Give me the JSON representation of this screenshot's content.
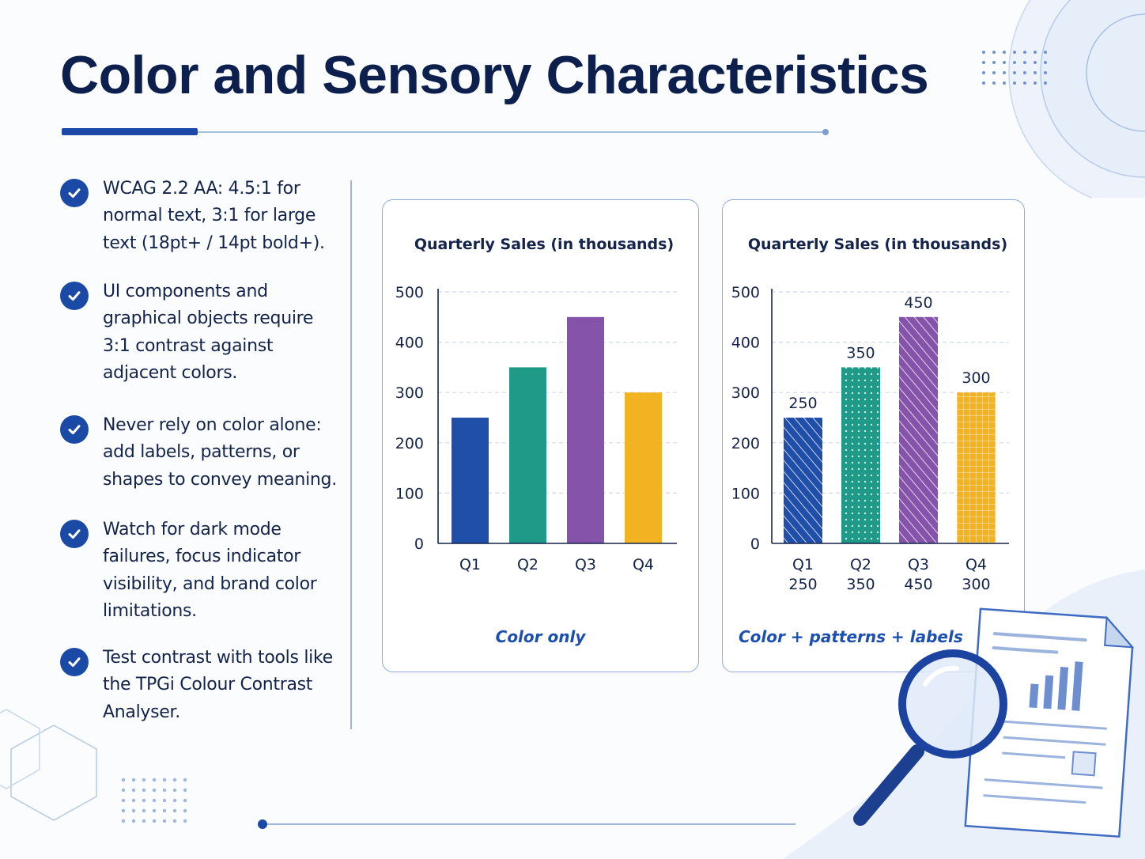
{
  "page": {
    "title": "Color and Sensory Characteristics"
  },
  "bullets": [
    {
      "text": "WCAG 2.2 AA: 4.5:1 for normal text, 3:1 for large text (18pt+ / 14pt bold+)."
    },
    {
      "text": "UI components and graphical objects require 3:1 contrast against adjacent colors."
    },
    {
      "text": "Never rely on color alone: add labels, patterns, or shapes to convey meaning."
    },
    {
      "text": "Watch for dark mode failures, focus indicator visibility, and brand color limitations."
    },
    {
      "text": "Test contrast with tools like the TPGi Colour Contrast Analyser."
    }
  ],
  "colors": {
    "navy": "#0c1f4d",
    "accent": "#1b4aa6",
    "q1": "#1f4fa8",
    "q2": "#1f9a89",
    "q3": "#8653ab",
    "q4": "#f2b322"
  },
  "icons": {
    "bullet": "check-circle-icon",
    "illustration": "magnifier-document-icon"
  },
  "chart_data": [
    {
      "type": "bar",
      "title": "Quarterly Sales (in thousands)",
      "categories": [
        "Q1",
        "Q2",
        "Q3",
        "Q4"
      ],
      "values": [
        250,
        350,
        450,
        300
      ],
      "ylim": [
        0,
        500
      ],
      "yticks": [
        0,
        100,
        200,
        300,
        400,
        500
      ],
      "grid": true,
      "data_labels": false,
      "encoding": "color only",
      "caption": "Color only"
    },
    {
      "type": "bar",
      "title": "Quarterly Sales (in thousands)",
      "categories": [
        "Q1",
        "Q2",
        "Q3",
        "Q4"
      ],
      "category_sublabels": [
        "250",
        "350",
        "450",
        "300"
      ],
      "values": [
        250,
        350,
        450,
        300
      ],
      "ylim": [
        0,
        500
      ],
      "yticks": [
        0,
        100,
        200,
        300,
        400,
        500
      ],
      "grid": true,
      "data_labels": true,
      "patterns": [
        "diagonal-lines",
        "dots",
        "diagonal-lines",
        "grid"
      ],
      "encoding": "color + patterns + labels",
      "caption": "Color + patterns + labels"
    }
  ]
}
